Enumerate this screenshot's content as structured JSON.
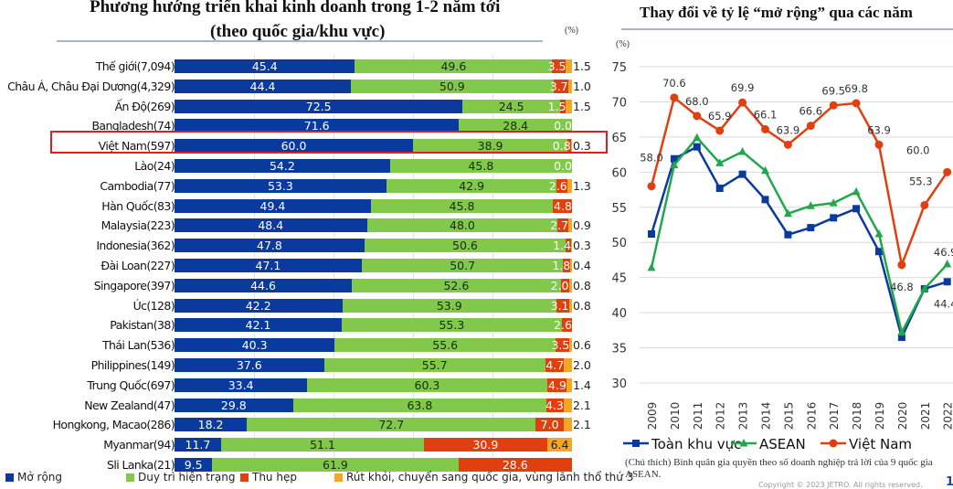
{
  "chart_data": [
    {
      "type": "bar",
      "orientation": "horizontal-stacked-100",
      "title": "Phương hướng triển khai kinh doanh trong 1-2 năm tới",
      "subtitle": "(theo quốc gia/khu vực)",
      "unit": "(%)",
      "categories": [
        "Thế giới(7,094)",
        "Châu Á, Châu Đại Dương(4,329)",
        "Ấn Độ(269)",
        "Bangladesh(74)",
        "Việt Nam(597)",
        "Lào(24)",
        "Cambodia(77)",
        "Hàn Quốc(83)",
        "Malaysia(223)",
        "Indonesia(362)",
        "Đài Loan(227)",
        "Singapore(397)",
        "Úc(128)",
        "Pakistan(38)",
        "Thái Lan(536)",
        "Philippines(149)",
        "Trung Quốc(697)",
        "New Zealand(47)",
        "Hongkong, Macao(286)",
        "Myanmar(94)",
        "Sli Lanka(21)"
      ],
      "highlighted_category": "Việt Nam(597)",
      "series": [
        {
          "name": "Mở rộng",
          "color": "#0a3a9e",
          "values": [
            45.4,
            44.4,
            72.5,
            71.6,
            60.0,
            54.2,
            53.3,
            49.4,
            48.4,
            47.8,
            47.1,
            44.6,
            42.2,
            42.1,
            40.3,
            37.6,
            33.4,
            29.8,
            18.2,
            11.7,
            9.5
          ]
        },
        {
          "name": "Duy trì hiện trạng",
          "color": "#82c84a",
          "values": [
            49.6,
            50.9,
            24.5,
            28.4,
            38.9,
            45.8,
            42.9,
            45.8,
            48.0,
            50.6,
            50.7,
            52.6,
            53.9,
            55.3,
            55.6,
            55.7,
            60.3,
            63.8,
            72.7,
            51.1,
            61.9
          ]
        },
        {
          "name": "Thu hẹp",
          "color": "#e0400f",
          "values": [
            3.5,
            3.7,
            1.5,
            0.0,
            0.8,
            0.0,
            2.6,
            4.8,
            2.7,
            1.4,
            1.8,
            2.0,
            3.1,
            2.6,
            3.5,
            4.7,
            4.9,
            4.3,
            7.0,
            30.9,
            28.6
          ]
        },
        {
          "name": "Rút khỏi, chuyển sang quốc gia, vùng lãnh thổ thứ 3",
          "color": "#f5a623",
          "values": [
            1.5,
            1.0,
            1.5,
            null,
            0.3,
            null,
            1.3,
            null,
            0.9,
            0.3,
            0.4,
            0.8,
            0.8,
            null,
            0.6,
            2.0,
            1.4,
            2.1,
            2.1,
            6.4,
            null
          ]
        }
      ],
      "xlim": [
        0,
        100
      ],
      "grid": true,
      "legend": "bottom"
    },
    {
      "type": "line",
      "title": "Thay đổi về tỷ lệ “mở rộng” qua các năm",
      "ylabel": "(%)",
      "ylim": [
        30,
        75
      ],
      "yticks": [
        30,
        35,
        40,
        45,
        50,
        55,
        60,
        65,
        70,
        75
      ],
      "x": [
        "2009",
        "2010",
        "2011",
        "2012",
        "2013",
        "2014",
        "2015",
        "2016",
        "2017",
        "2018",
        "2019",
        "2020",
        "2021",
        "2022"
      ],
      "series": [
        {
          "name": "Toàn khu vực",
          "color": "#0a3a9e",
          "marker": "square",
          "values": [
            51.2,
            61.9,
            63.6,
            57.7,
            59.7,
            56.1,
            51.1,
            52.1,
            53.5,
            54.8,
            48.7,
            36.5,
            43.4,
            44.4
          ],
          "labels": {
            "13": "44.4"
          }
        },
        {
          "name": "ASEAN",
          "color": "#22a84a",
          "marker": "triangle",
          "values": [
            46.4,
            61.0,
            64.9,
            61.3,
            62.9,
            60.2,
            54.1,
            55.2,
            55.6,
            57.2,
            51.2,
            37.2,
            43.4,
            46.9
          ],
          "labels": {
            "13": "46.9"
          }
        },
        {
          "name": "Việt Nam",
          "color": "#e0400f",
          "marker": "circle",
          "values": [
            58.0,
            70.6,
            68.0,
            65.9,
            69.9,
            66.1,
            63.9,
            66.6,
            69.5,
            69.8,
            63.9,
            46.8,
            55.3,
            60.0
          ],
          "labels": {
            "0": "58.0",
            "1": "70.6",
            "2": "68.0",
            "3": "65.9",
            "4": "69.9",
            "5": "66.1",
            "6": "63.9",
            "7": "66.6",
            "8": "69.5",
            "9": "69.8",
            "10": "63.9",
            "11": "46.8",
            "12": "55.3",
            "13": "60.0"
          }
        }
      ],
      "grid": true,
      "legend": "bottom"
    }
  ],
  "note": "(Chú thích) Bình quân gia quyền theo số doanh nghiệp trả lời của 9 quốc gia ASEAN.",
  "copyright": "Copyright © 2023 JETRO. All rights reserved.",
  "page_number": "1"
}
